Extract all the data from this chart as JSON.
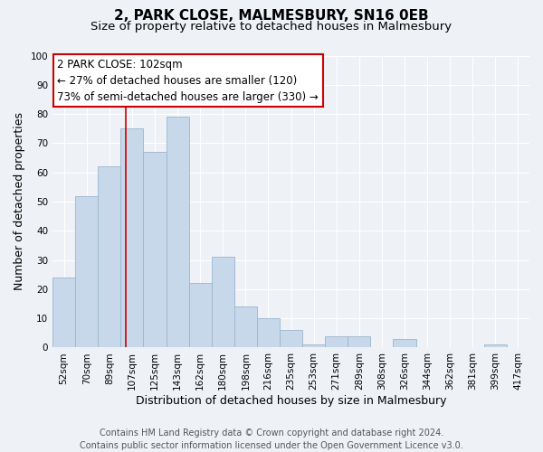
{
  "title": "2, PARK CLOSE, MALMESBURY, SN16 0EB",
  "subtitle": "Size of property relative to detached houses in Malmesbury",
  "xlabel": "Distribution of detached houses by size in Malmesbury",
  "ylabel": "Number of detached properties",
  "footer_line1": "Contains HM Land Registry data © Crown copyright and database right 2024.",
  "footer_line2": "Contains public sector information licensed under the Open Government Licence v3.0.",
  "bar_labels": [
    "52sqm",
    "70sqm",
    "89sqm",
    "107sqm",
    "125sqm",
    "143sqm",
    "162sqm",
    "180sqm",
    "198sqm",
    "216sqm",
    "235sqm",
    "253sqm",
    "271sqm",
    "289sqm",
    "308sqm",
    "326sqm",
    "344sqm",
    "362sqm",
    "381sqm",
    "399sqm",
    "417sqm"
  ],
  "bar_values": [
    24,
    52,
    62,
    75,
    67,
    79,
    22,
    31,
    14,
    10,
    6,
    1,
    4,
    4,
    0,
    3,
    0,
    0,
    0,
    1,
    0
  ],
  "bar_color": "#c8d8eb",
  "bar_edge_color": "#9ab5cc",
  "annotation_title": "2 PARK CLOSE: 102sqm",
  "annotation_line2": "← 27% of detached houses are smaller (120)",
  "annotation_line3": "73% of semi-detached houses are larger (330) →",
  "vline_bar_index": 2.72,
  "ylim": [
    0,
    100
  ],
  "background_color": "#eef2f7",
  "grid_color": "#ffffff",
  "annotation_box_facecolor": "#ffffff",
  "annotation_box_edgecolor": "#cc0000",
  "vline_color": "#cc0000",
  "title_fontsize": 11,
  "subtitle_fontsize": 9.5,
  "axis_label_fontsize": 9,
  "tick_fontsize": 7.5,
  "annotation_fontsize": 8.5,
  "footer_fontsize": 7
}
